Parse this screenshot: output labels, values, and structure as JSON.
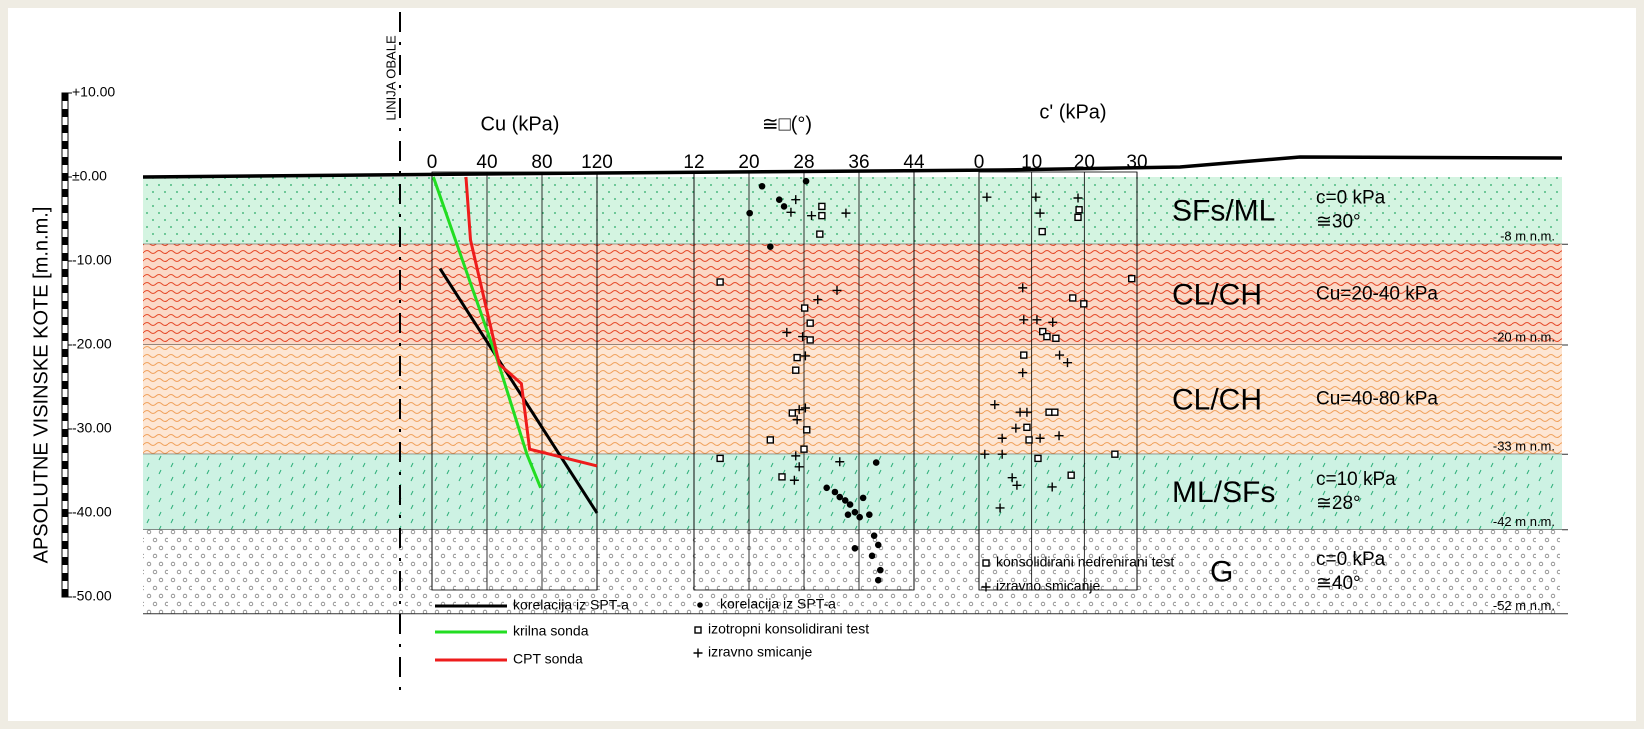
{
  "shoreline_label": "LINIJA OBALE",
  "elevation_axis": {
    "label": "APSOLUTNE VISINSKE KOTE [m.n.m.]",
    "ylim": [
      -50,
      10
    ],
    "yticks": [
      {
        "value": 10,
        "label": "+10.00"
      },
      {
        "value": 0,
        "label": "±0.00"
      },
      {
        "value": -10,
        "label": "-10.00"
      },
      {
        "value": -20,
        "label": "-20.00"
      },
      {
        "value": -30,
        "label": "-30.00"
      },
      {
        "value": -40,
        "label": "-40.00"
      },
      {
        "value": -50,
        "label": "-50.00"
      }
    ]
  },
  "layers": [
    {
      "name": "SFs/ML",
      "top": 0,
      "bottom": -8,
      "bottom_label": "-8 m n.m.",
      "params": [
        "c=0 kPa",
        "≅30°"
      ],
      "color": "#d4f4e1",
      "hatch": "dots",
      "hatch_color": "#26a865"
    },
    {
      "name": "CL/CH",
      "top": -8,
      "bottom": -20,
      "bottom_label": "-20 m n.m.",
      "params": [
        "Cu=20-40 kPa"
      ],
      "color": "#fbd8c6",
      "hatch": "waves",
      "hatch_color": "#e54a2a"
    },
    {
      "name": "CL/CH",
      "top": -20,
      "bottom": -33,
      "bottom_label": "-33 m n.m.",
      "params": [
        "Cu=40-80 kPa"
      ],
      "color": "#fde6d4",
      "hatch": "waves",
      "hatch_color": "#f0a25e"
    },
    {
      "name": "ML/SFs",
      "top": -33,
      "bottom": -42,
      "bottom_label": "-42 m n.m.",
      "params": [
        "c=10 kPa",
        "≅28°"
      ],
      "color": "#cdf2e3",
      "hatch": "dashes",
      "hatch_color": "#2aae78"
    },
    {
      "name": "G",
      "top": -42,
      "bottom": -52,
      "bottom_label": "-52 m n.m.",
      "params": [
        "c=0 kPa",
        "≅40°"
      ],
      "color": "#ffffff",
      "hatch": "circles",
      "hatch_color": "#808080"
    }
  ],
  "charts": [
    {
      "type": "line",
      "title": "Cu (kPa)",
      "xlim": [
        0,
        120
      ],
      "xticks": [
        0,
        40,
        80,
        120
      ],
      "series": [
        {
          "name": "korelacija iz SPT-a",
          "color": "#000000",
          "x": [
            5.8,
            120
          ],
          "y": [
            -10.9,
            -40
          ]
        },
        {
          "name": "krilna sonda",
          "color": "#22dd22",
          "x": [
            1,
            48,
            69,
            79
          ],
          "y": [
            0,
            -22,
            -33,
            -37
          ]
        },
        {
          "name": "CPT sonda",
          "color": "#ee1c1c",
          "x": [
            24.7,
            28,
            49,
            65,
            71,
            120
          ],
          "y": [
            0,
            -7.5,
            -22.3,
            -24.6,
            -32.4,
            -34.4
          ]
        }
      ]
    },
    {
      "type": "scatter",
      "title": "≅□(°)",
      "xlim": [
        12,
        44
      ],
      "xticks": [
        12,
        20,
        28,
        36,
        44
      ],
      "series": [
        {
          "name": "korelacija iz SPT-a",
          "marker": "dot",
          "color": "#000000",
          "x": [
            21.9,
            20.1,
            23.1,
            25.1,
            28.3,
            24.4,
            31.3,
            32.5,
            34.0,
            34.7,
            35.4,
            34.4,
            36.1,
            37.5,
            38.5,
            38.2,
            38.8,
            37.9,
            35.4,
            39.1,
            38.8,
            33.2,
            36.6
          ],
          "y": [
            -1.1,
            -4.3,
            -8.3,
            -3.5,
            -0.5,
            -2.7,
            -37.0,
            -37.5,
            -38.5,
            -39.0,
            -39.9,
            -40.2,
            -40.5,
            -40.2,
            -34.0,
            -42.7,
            -43.8,
            -45.1,
            -44.2,
            -46.8,
            -48.0,
            -38.1,
            -38.2
          ]
        },
        {
          "name": "izotropni konsolidirani test",
          "marker": "square",
          "color": "#000000",
          "x": [
            15.8,
            28.1,
            28.9,
            28.9,
            27.0,
            26.8,
            26.3,
            28.4,
            23.1,
            24.8,
            15.8,
            30.6,
            30.6,
            30.3,
            28.0
          ],
          "y": [
            -12.5,
            -15.6,
            -17.4,
            -19.4,
            -21.5,
            -23.0,
            -28.1,
            -30.1,
            -31.3,
            -35.7,
            -33.5,
            -3.5,
            -4.6,
            -6.8,
            -32.4
          ]
        },
        {
          "name": "izravno smicanje",
          "marker": "plus",
          "color": "#000000",
          "x": [
            26.8,
            26.1,
            34.1,
            29.1,
            32.8,
            30.0,
            25.5,
            27.8,
            28.2,
            27.3,
            28.2,
            27.0,
            26.8,
            27.3,
            33.2,
            26.6
          ],
          "y": [
            -2.7,
            -4.2,
            -4.3,
            -4.6,
            -13.5,
            -14.6,
            -18.5,
            -19.0,
            -21.3,
            -27.7,
            -27.5,
            -28.9,
            -33.2,
            -34.5,
            -33.9,
            -36.1
          ]
        }
      ]
    },
    {
      "type": "scatter",
      "title": "c' (kPa)",
      "xlim": [
        0,
        30
      ],
      "xticks": [
        0,
        10,
        20,
        30
      ],
      "series": [
        {
          "name": "konsolidirani nedrenirani test",
          "marker": "square",
          "color": "#000000",
          "x": [
            12.0,
            19.0,
            18.8,
            8.5,
            9.1,
            29.0,
            19.9,
            17.8,
            12.1,
            12.9,
            14.6,
            13.3,
            14.4,
            9.5,
            11.2,
            25.8,
            17.5
          ],
          "y": [
            -6.5,
            -3.9,
            -4.8,
            -21.2,
            -29.8,
            -12.1,
            -15.1,
            -14.4,
            -18.4,
            -19.0,
            -19.2,
            -28.0,
            -28.0,
            -31.3,
            -33.5,
            -33.0,
            -35.5
          ]
        },
        {
          "name": "izravno smicanje",
          "marker": "plus",
          "color": "#000000",
          "x": [
            1.5,
            10.8,
            11.6,
            18.8,
            8.3,
            11.0,
            8.5,
            14.0,
            15.3,
            16.8,
            8.3,
            3.0,
            7.8,
            9.1,
            7.0,
            11.6,
            4.4,
            15.2,
            1.1,
            4.4,
            6.3,
            7.2,
            13.9,
            4.0
          ],
          "y": [
            -2.4,
            -2.4,
            -4.3,
            -2.5,
            -13.2,
            -17.0,
            -17.0,
            -17.3,
            -21.2,
            -22.1,
            -23.3,
            -27.1,
            -28.0,
            -28.0,
            -29.9,
            -31.1,
            -31.1,
            -30.8,
            -33.0,
            -33.0,
            -35.8,
            -36.7,
            -36.9,
            -39.4
          ]
        }
      ]
    }
  ]
}
